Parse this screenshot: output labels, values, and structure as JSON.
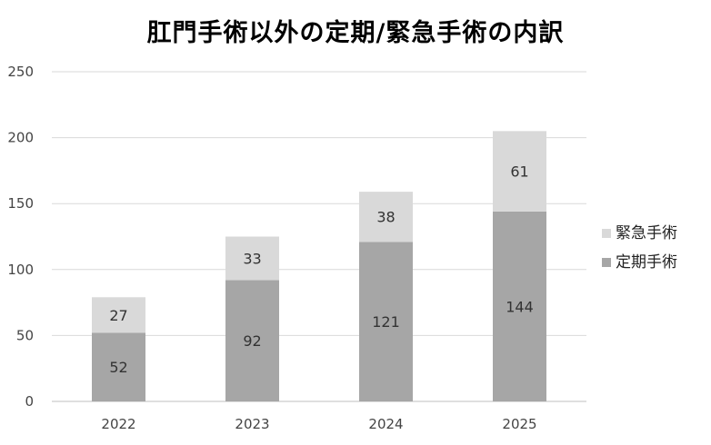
{
  "chart_data": {
    "type": "bar",
    "stacked": true,
    "title": "肛門手術以外の定期/緊急手術の内訳",
    "categories": [
      "2022",
      "2023",
      "2024",
      "2025"
    ],
    "series": [
      {
        "name": "定期手術",
        "values": [
          52,
          92,
          121,
          144
        ],
        "color": "#a6a6a6"
      },
      {
        "name": "緊急手術",
        "values": [
          27,
          33,
          38,
          61
        ],
        "color": "#d9d9d9"
      }
    ],
    "ylim": [
      0,
      250
    ],
    "yticks": [
      0,
      50,
      100,
      150,
      200,
      250
    ],
    "grid": true,
    "legend_position": "right",
    "legend_order": [
      "緊急手術",
      "定期手術"
    ]
  }
}
